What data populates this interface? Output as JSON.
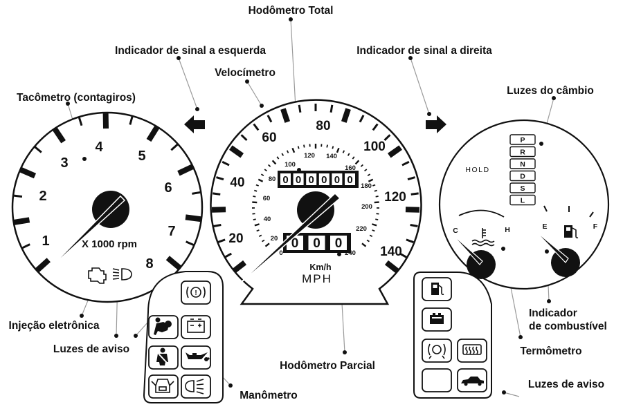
{
  "labels": {
    "odometer_total": "Hodômetro Total",
    "turn_left": "Indicador de sinal a esquerda",
    "turn_right": "Indicador de sinal a direita",
    "speedometer": "Velocímetro",
    "tachometer": "Tacômetro (contagiros)",
    "gear_lights": "Luzes do câmbio",
    "injection": "Injeção eletrônica",
    "warning_left": "Luzes de aviso",
    "trip_odometer": "Hodômetro Parcial",
    "oil_gauge": "Manômetro",
    "thermometer": "Termômetro",
    "fuel_line1": "Indicador",
    "fuel_line2": "de combustível",
    "warning_right": "Luzes de aviso"
  },
  "tachometer": {
    "numbers": [
      "1",
      "2",
      "3",
      "4",
      "5",
      "6",
      "7",
      "8"
    ],
    "unit": "X 1000 rpm"
  },
  "speedometer": {
    "mph_numbers": [
      "20",
      "40",
      "60",
      "80",
      "100",
      "120",
      "140"
    ],
    "kmh_numbers": [
      "20",
      "40",
      "60",
      "80",
      "100",
      "120",
      "140",
      "160",
      "180",
      "200",
      "220",
      "240"
    ],
    "kmh_zero": "0",
    "unit_kmh": "Km/h",
    "unit_mph": "MPH",
    "odometer_digits": [
      "0",
      "0",
      "0",
      "0",
      "0",
      "0"
    ],
    "trip_digits": [
      "0",
      "0",
      "0"
    ]
  },
  "gear": {
    "hold": "HOLD",
    "positions": [
      "P",
      "R",
      "N",
      "D",
      "S",
      "L"
    ]
  },
  "gauges": {
    "temp_cold": "C",
    "temp_hot": "H",
    "fuel_empty": "E",
    "fuel_full": "F"
  },
  "icons": [
    "check-engine-icon",
    "headlight-icon",
    "brake-warning-icon",
    "airbag-icon",
    "battery-icon",
    "seatbelt-icon",
    "oil-can-icon",
    "door-open-icon",
    "high-beam-icon",
    "fuel-pump-icon",
    "cruise-control-icon",
    "abs-icon",
    "rear-defrost-icon",
    "car-icon",
    "turn-left-arrow-icon",
    "turn-right-arrow-icon"
  ]
}
